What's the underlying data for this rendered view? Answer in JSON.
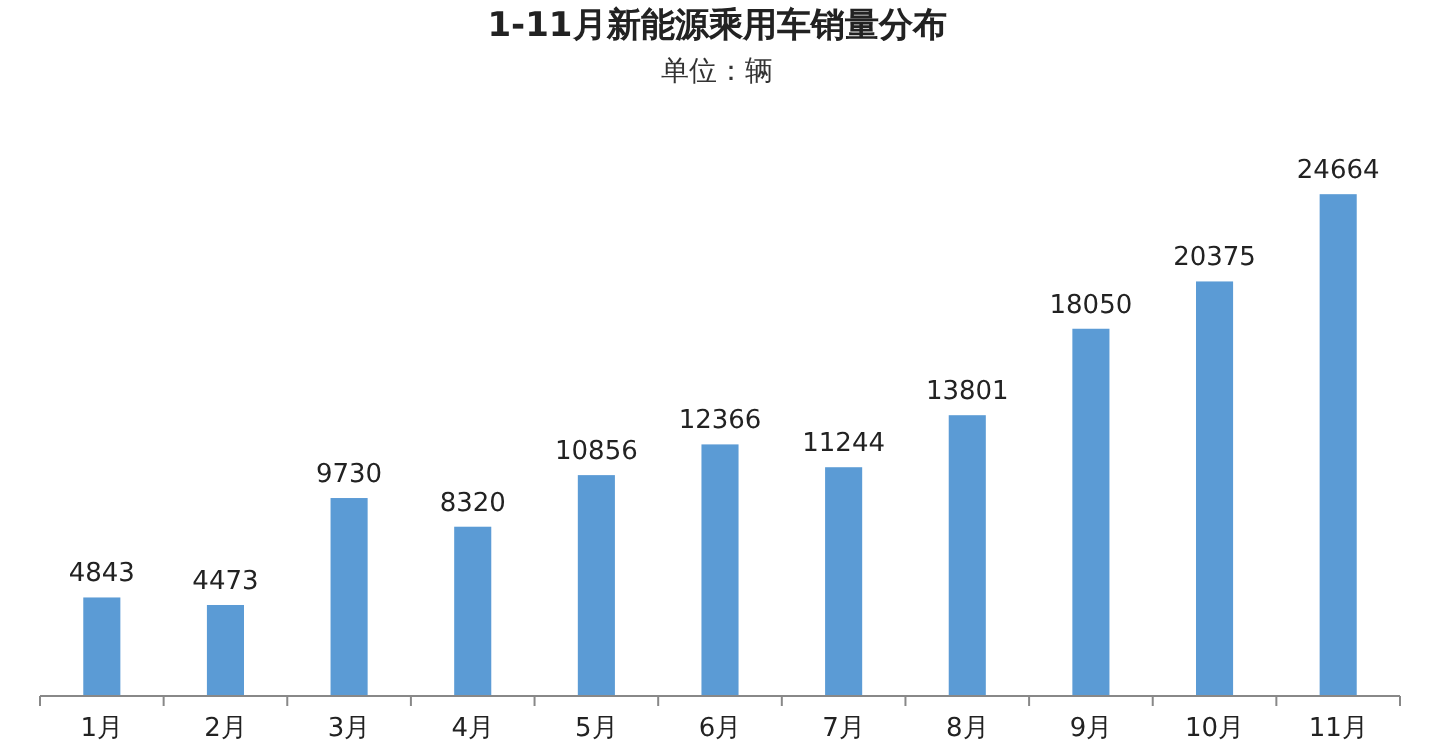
{
  "chart_data": {
    "type": "bar",
    "title": "1-11月新能源乘用车销量分布",
    "subtitle": "单位：辆",
    "categories": [
      "1月",
      "2月",
      "3月",
      "4月",
      "5月",
      "6月",
      "7月",
      "8月",
      "9月",
      "10月",
      "11月"
    ],
    "values": [
      4843,
      4473,
      9730,
      8320,
      10856,
      12366,
      11244,
      13801,
      18050,
      20375,
      24664
    ],
    "color": "#5b9bd5",
    "data_labels": true
  }
}
